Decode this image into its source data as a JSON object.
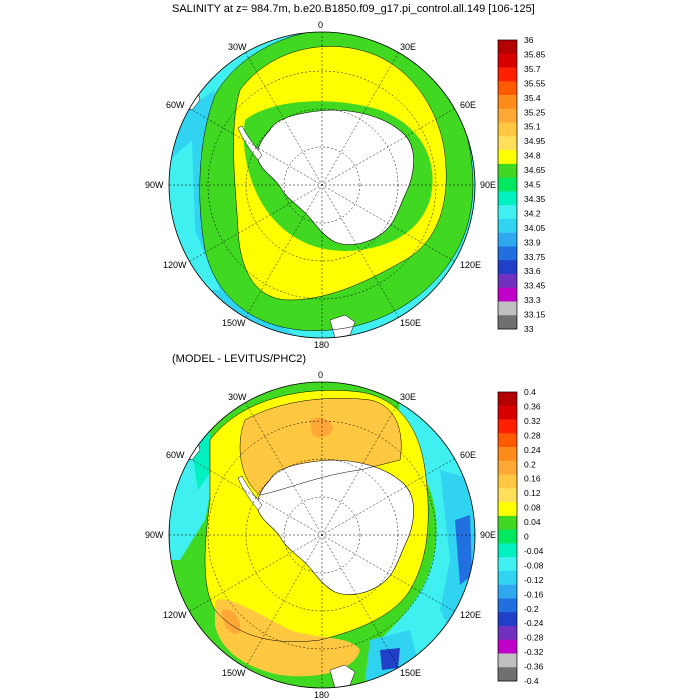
{
  "panels": [
    {
      "title": "SALINITY at z= 984.7m, b.e20.B1850.f09_g17.pi_control.all.149 [106-125]",
      "lon_labels": {
        "top": "0",
        "top_right": "30E",
        "right_upper": "60E",
        "right": "90E",
        "right_lower": "120E",
        "bottom_right": "150E",
        "bottom": "180",
        "bottom_left": "150W",
        "left_lower": "120W",
        "left": "90W",
        "left_upper": "60W",
        "top_left": "30W"
      },
      "colorbar": {
        "labels": [
          "36",
          "35.85",
          "35.7",
          "35.55",
          "35.4",
          "35.25",
          "35.1",
          "34.95",
          "34.8",
          "34.65",
          "34.5",
          "34.35",
          "34.2",
          "34.05",
          "33.9",
          "33.75",
          "33.6",
          "33.45",
          "33.3",
          "33.15",
          "33"
        ],
        "colors": [
          "#b40000",
          "#d80000",
          "#ff2000",
          "#ff5a00",
          "#ff8c1a",
          "#ffa838",
          "#ffc840",
          "#ffe05a",
          "#ffff00",
          "#40d820",
          "#00e860",
          "#00f0c0",
          "#40f0f0",
          "#30d4f0",
          "#30a8f0",
          "#2070e0",
          "#2040c8",
          "#7030c0",
          "#c000c8",
          "#c0c0c0",
          "#707070"
        ]
      }
    },
    {
      "title": "(MODEL - LEVITUS/PHC2)",
      "lon_labels": {
        "top": "0",
        "top_right": "30E",
        "right_upper": "60E",
        "right": "90E",
        "right_lower": "120E",
        "bottom_right": "150E",
        "bottom": "180",
        "bottom_left": "150W",
        "left_lower": "120W",
        "left": "90W",
        "left_upper": "60W",
        "top_left": "30W"
      },
      "colorbar": {
        "labels": [
          "0.4",
          "0.36",
          "0.32",
          "0.28",
          "0.24",
          "0.2",
          "0.16",
          "0.12",
          "0.08",
          "0.04",
          "0",
          "-0.04",
          "-0.08",
          "-0.12",
          "-0.16",
          "-0.2",
          "-0.24",
          "-0.28",
          "-0.32",
          "-0.36",
          "-0.4"
        ],
        "colors": [
          "#b40000",
          "#d80000",
          "#ff2000",
          "#ff5a00",
          "#ff8c1a",
          "#ffa838",
          "#ffc840",
          "#ffe05a",
          "#ffff00",
          "#40d820",
          "#00e860",
          "#00f0c0",
          "#40f0f0",
          "#30d4f0",
          "#30a8f0",
          "#2070e0",
          "#2040c8",
          "#7030c0",
          "#c000c8",
          "#c0c0c0",
          "#707070"
        ]
      }
    }
  ]
}
